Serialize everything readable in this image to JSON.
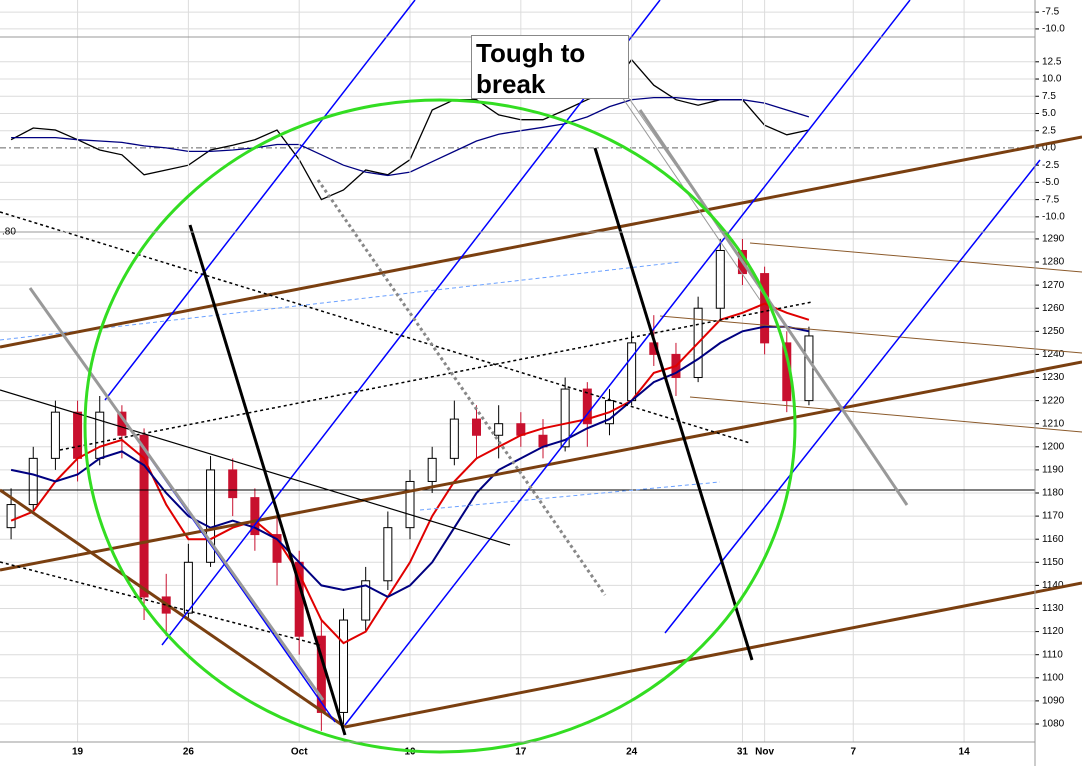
{
  "chart_data": [
    {
      "type": "line",
      "ylim": [
        -11.2,
        -5.7
      ],
      "yticks": [
        -7.5,
        {
          "value": -10,
          "label": "-10.0"
        }
      ]
    },
    {
      "type": "line",
      "ylim": [
        -12.2,
        16.1
      ],
      "xlim": [
        -3.5,
        43.2
      ],
      "yticks": [
        12.5,
        {
          "value": 10,
          "label": "10.0"
        },
        7.5,
        {
          "value": 5,
          "label": "5.0"
        },
        2.5,
        {
          "value": 0,
          "label": "0.0"
        },
        -2.5,
        {
          "value": -5,
          "label": "-5.0"
        },
        -7.5,
        {
          "value": -10,
          "label": "-10.0"
        }
      ],
      "x": [
        -3,
        -2,
        -1,
        0,
        1,
        2,
        3,
        4,
        5,
        6,
        7,
        8,
        9,
        10,
        11,
        12,
        13,
        14,
        15,
        16,
        17,
        18,
        19,
        20,
        21,
        22,
        23,
        24,
        25,
        26,
        27,
        28,
        29,
        30,
        31,
        32,
        33
      ],
      "series": [
        {
          "color": "#000000",
          "values": [
            1.2,
            2.9,
            2.6,
            1.2,
            -0.3,
            -1,
            -3.9,
            -3.2,
            -2.5,
            -0.3,
            0.4,
            1.2,
            2.6,
            -1.7,
            -7.5,
            -6.1,
            -3.2,
            -3.9,
            -1.7,
            5.5,
            7,
            7,
            4.8,
            4.1,
            4.1,
            5.5,
            7,
            8.4,
            12.8,
            9.1,
            7,
            6.2,
            7,
            7,
            3.3,
            1.9,
            2.6
          ]
        },
        {
          "color": "#000080",
          "values": [
            1.5,
            1.5,
            1.5,
            1.2,
            1,
            0.8,
            0.3,
            0,
            -0.5,
            -0.5,
            -0.3,
            0,
            0.5,
            0.5,
            -1,
            -2.5,
            -3.5,
            -4,
            -3.5,
            -2,
            -0.5,
            1,
            2,
            2.5,
            3,
            3.5,
            4.5,
            6,
            7,
            7.3,
            7.3,
            7,
            7,
            7,
            6.5,
            5.5,
            4.5
          ]
        }
      ]
    },
    {
      "type": "candlestick",
      "ylim": [
        1072.2,
        1293
      ],
      "xlim": [
        -3.5,
        43.2
      ],
      "cut_label": ".80",
      "annotation": "Tough to break",
      "yticks": [
        1080,
        1090,
        1100,
        1110,
        1120,
        1130,
        1140,
        1150,
        1160,
        1170,
        1180,
        1190,
        1200,
        1210,
        1220,
        1230,
        1240,
        1250,
        1260,
        1270,
        1280,
        1290
      ],
      "xticks": [
        {
          "value": 0,
          "label": "19"
        },
        {
          "value": 5,
          "label": "26"
        },
        {
          "value": 10,
          "label": "Oct"
        },
        {
          "value": 15,
          "label": "10"
        },
        {
          "value": 20,
          "label": "17"
        },
        {
          "value": 25,
          "label": "24"
        },
        {
          "value": 30,
          "label": "31"
        },
        {
          "value": 31,
          "label": "Nov"
        },
        {
          "value": 35,
          "label": "7"
        },
        {
          "value": 40,
          "label": "14"
        }
      ],
      "up_color": "#ffffff",
      "down_color": "#c8102e",
      "x": [
        -3,
        -2,
        -1,
        0,
        1,
        2,
        3,
        4,
        5,
        6,
        7,
        8,
        9,
        10,
        11,
        12,
        13,
        14,
        15,
        16,
        17,
        18,
        19,
        20,
        21,
        22,
        23,
        24,
        25,
        26,
        27,
        28,
        29,
        30,
        31,
        32,
        33
      ],
      "open": [
        1165,
        1175,
        1195,
        1215,
        1195,
        1215,
        1205,
        1135,
        1128,
        1150,
        1190,
        1178,
        1162,
        1150,
        1118,
        1085,
        1125,
        1142,
        1165,
        1185,
        1195,
        1212,
        1205,
        1210,
        1205,
        1200,
        1225,
        1210,
        1220,
        1245,
        1240,
        1230,
        1260,
        1285,
        1275,
        1245,
        1220
      ],
      "high": [
        1182,
        1200,
        1220,
        1220,
        1222,
        1218,
        1208,
        1145,
        1158,
        1196,
        1195,
        1182,
        1170,
        1155,
        1125,
        1130,
        1148,
        1172,
        1190,
        1200,
        1220,
        1218,
        1218,
        1215,
        1212,
        1230,
        1228,
        1225,
        1250,
        1257,
        1245,
        1265,
        1290,
        1290,
        1278,
        1250,
        1252
      ],
      "low": [
        1160,
        1172,
        1190,
        1185,
        1192,
        1195,
        1125,
        1118,
        1125,
        1148,
        1170,
        1155,
        1140,
        1110,
        1077,
        1080,
        1120,
        1138,
        1160,
        1180,
        1192,
        1195,
        1195,
        1200,
        1195,
        1198,
        1200,
        1205,
        1218,
        1235,
        1222,
        1228,
        1255,
        1270,
        1240,
        1215,
        1218
      ],
      "close": [
        1175,
        1195,
        1215,
        1195,
        1215,
        1205,
        1135,
        1128,
        1150,
        1190,
        1178,
        1162,
        1150,
        1118,
        1085,
        1125,
        1142,
        1165,
        1185,
        1195,
        1212,
        1205,
        1210,
        1205,
        1200,
        1225,
        1210,
        1220,
        1245,
        1240,
        1230,
        1260,
        1285,
        1275,
        1245,
        1220,
        1248
      ],
      "series": [
        {
          "color": "#e00000",
          "values": [
            1168,
            1172,
            1185,
            1195,
            1200,
            1203,
            1195,
            1175,
            1160,
            1160,
            1165,
            1168,
            1160,
            1145,
            1125,
            1115,
            1120,
            1135,
            1150,
            1170,
            1185,
            1195,
            1200,
            1205,
            1208,
            1210,
            1212,
            1215,
            1220,
            1232,
            1235,
            1245,
            1255,
            1258,
            1262,
            1258,
            1255
          ]
        },
        {
          "color": "#000080",
          "values": [
            1190,
            1188,
            1185,
            1188,
            1195,
            1198,
            1192,
            1180,
            1170,
            1165,
            1168,
            1165,
            1160,
            1150,
            1140,
            1138,
            1140,
            1135,
            1140,
            1150,
            1165,
            1180,
            1190,
            1195,
            1200,
            1203,
            1208,
            1212,
            1220,
            1228,
            1232,
            1238,
            1245,
            1250,
            1252,
            1252,
            1250
          ]
        }
      ]
    }
  ]
}
